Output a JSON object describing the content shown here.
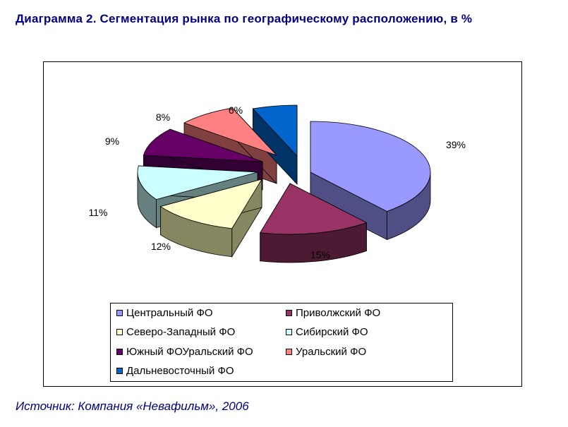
{
  "title": "Диаграмма 2. Сегментация рынка по географическому расположению, в %",
  "source": "Источник: Компания «Невафильм», 2006",
  "chart_data": {
    "type": "pie",
    "style": "3d-exploded",
    "legend_position": "bottom",
    "slices": [
      {
        "label": "Центральный ФО",
        "value": 39,
        "data_label": "39%",
        "color": "#9999ff",
        "side_color": "#4f4f86"
      },
      {
        "label": "Приволжский ФО",
        "value": 15,
        "data_label": "15%",
        "color": "#993366",
        "side_color": "#4d1a33"
      },
      {
        "label": "Северо-Западный ФО",
        "value": 12,
        "data_label": "12%",
        "color": "#ffffcc",
        "side_color": "#868661"
      },
      {
        "label": "Сибирский ФО",
        "value": 11,
        "data_label": "11%",
        "color": "#ccffff",
        "side_color": "#668080"
      },
      {
        "label": "Южный ФОУральский ФО",
        "value": 9,
        "data_label": "9%",
        "color": "#660066",
        "side_color": "#330033"
      },
      {
        "label": "Уральский ФО",
        "value": 8,
        "data_label": "8%",
        "color": "#ff8080",
        "side_color": "#804040"
      },
      {
        "label": "Дальневосточный ФО",
        "value": 6,
        "data_label": "6%",
        "color": "#0066cc",
        "side_color": "#003366"
      }
    ]
  }
}
